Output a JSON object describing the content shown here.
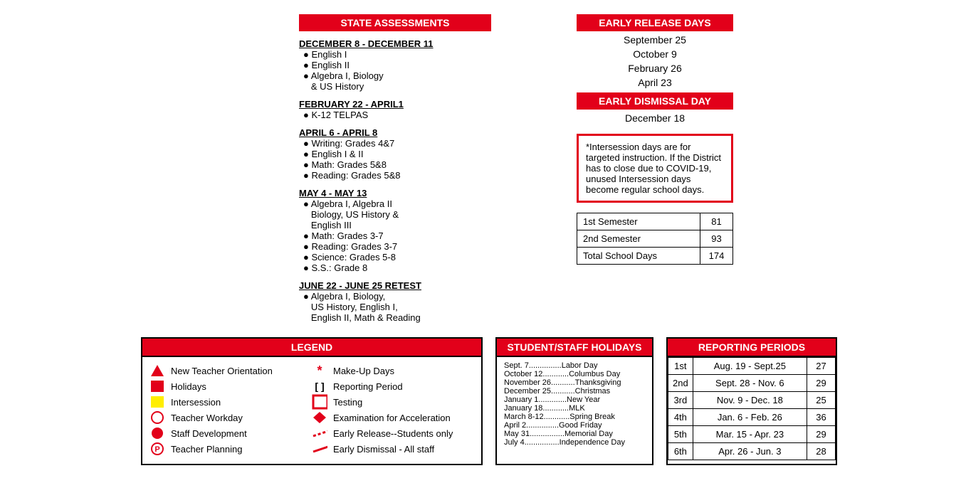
{
  "colors": {
    "red": "#e2001a",
    "yellow": "#ffee00",
    "black": "#000000",
    "white": "#ffffff"
  },
  "assessments": {
    "header": "STATE ASSESSMENTS",
    "blocks": [
      {
        "title": "DECEMBER 8 - DECEMBER 11",
        "items": [
          "● English I",
          "● English II",
          "● Algebra I, Biology",
          "   & US History"
        ]
      },
      {
        "title": "FEBRUARY 22 - APRIL1",
        "items": [
          "● K-12 TELPAS"
        ]
      },
      {
        "title": "APRIL 6 - APRIL 8",
        "items": [
          "● Writing: Grades 4&7",
          "● English I & II",
          "● Math: Grades 5&8",
          "● Reading: Grades 5&8"
        ]
      },
      {
        "title": "MAY 4 - MAY 13",
        "items": [
          "● Algebra I, Algebra II",
          "   Biology, US History &",
          "   English III",
          "● Math: Grades 3-7",
          "● Reading: Grades 3-7",
          "● Science: Grades 5-8",
          "● S.S.: Grade 8"
        ]
      },
      {
        "title": "JUNE 22 - JUNE 25 RETEST",
        "items": [
          "● Algebra I, Biology,",
          "   US History, English I,",
          "   English II, Math & Reading"
        ]
      }
    ]
  },
  "earlyRelease": {
    "header": "EARLY RELEASE DAYS",
    "dates": [
      "September 25",
      "October 9",
      "February 26",
      "April 23"
    ]
  },
  "earlyDismissal": {
    "header": "EARLY DISMISSAL DAY",
    "date": "December 18"
  },
  "note": "*Intersession days are for targeted instruction. If the District has to close due to COVID-19, unused Intersession days become regular school days.",
  "semesters": [
    {
      "label": "1st Semester",
      "days": "81"
    },
    {
      "label": "2nd Semester",
      "days": "93"
    },
    {
      "label": "Total School Days",
      "days": "174"
    }
  ],
  "legend": {
    "header": "LEGEND",
    "left": [
      {
        "sym": "triangle-red",
        "label": "New Teacher Orientation"
      },
      {
        "sym": "square-red",
        "label": "Holidays"
      },
      {
        "sym": "square-yellow",
        "label": "Intersession"
      },
      {
        "sym": "circle-outline",
        "label": "Teacher Workday"
      },
      {
        "sym": "circle-red",
        "label": "Staff Development"
      },
      {
        "sym": "circle-p",
        "label": "Teacher Planning"
      }
    ],
    "right": [
      {
        "sym": "star-red",
        "label": "Make-Up Days"
      },
      {
        "sym": "brackets",
        "label": "Reporting Period"
      },
      {
        "sym": "square-outline-red",
        "label": "Testing"
      },
      {
        "sym": "diamond-red",
        "label": "Examination for Acceleration"
      },
      {
        "sym": "dash-red",
        "label": "Early Release--Students only"
      },
      {
        "sym": "slash-red",
        "label": "Early Dismissal - All staff"
      }
    ]
  },
  "holidays": {
    "header": "STUDENT/STAFF HOLIDAYS",
    "rows": [
      {
        "d": "Sept. 7",
        "n": "Labor Day"
      },
      {
        "d": "October 12",
        "n": "Columbus Day"
      },
      {
        "d": "November 26",
        "n": "Thanksgiving"
      },
      {
        "d": "December 25",
        "n": "Christmas"
      },
      {
        "d": "January 1",
        "n": "New Year"
      },
      {
        "d": "January 18",
        "n": "MLK"
      },
      {
        "d": "March 8-12",
        "n": "Spring Break"
      },
      {
        "d": "April 2",
        "n": "Good Friday"
      },
      {
        "d": "May 31",
        "n": "Memorial Day"
      },
      {
        "d": "July 4",
        "n": "Independence Day"
      }
    ]
  },
  "reporting": {
    "header": "REPORTING PERIODS",
    "rows": [
      {
        "n": "1st",
        "range": "Aug. 19 - Sept.25",
        "days": "27"
      },
      {
        "n": "2nd",
        "range": "Sept. 28 - Nov. 6",
        "days": "29"
      },
      {
        "n": "3rd",
        "range": "Nov. 9 - Dec. 18",
        "days": "25"
      },
      {
        "n": "4th",
        "range": "Jan. 6 - Feb. 26",
        "days": "36"
      },
      {
        "n": "5th",
        "range": "Mar. 15 - Apr. 23",
        "days": "29"
      },
      {
        "n": "6th",
        "range": "Apr. 26 - Jun. 3",
        "days": "28"
      }
    ]
  }
}
